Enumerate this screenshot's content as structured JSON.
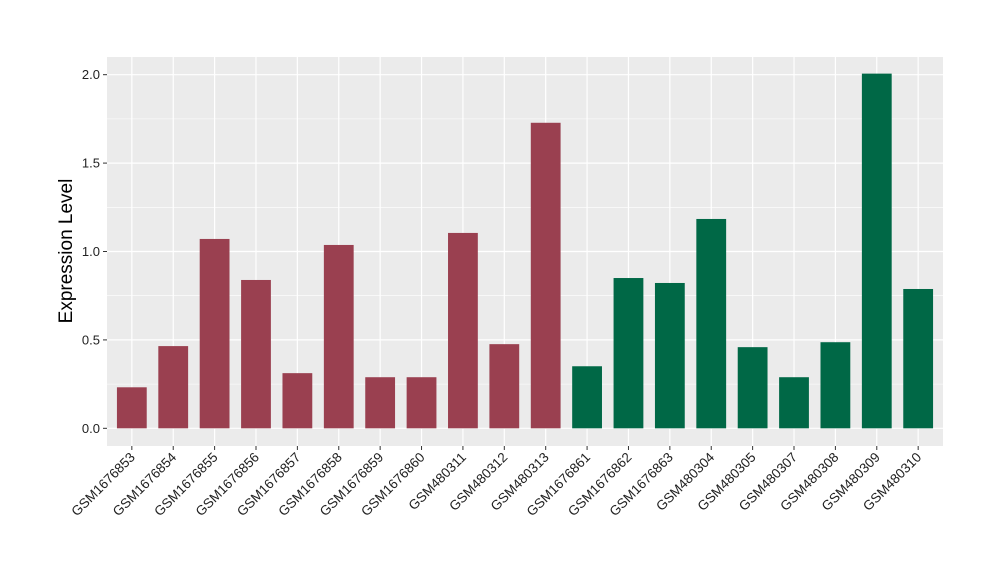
{
  "chart_data": {
    "type": "bar",
    "title": "",
    "xlabel": "",
    "ylabel": "Expression Level",
    "ylim": [
      -0.1,
      2.1
    ],
    "yticks": [
      "0.0",
      "0.5",
      "1.0",
      "1.5",
      "2.0"
    ],
    "grid": true,
    "categories": [
      "GSM1676853",
      "GSM1676854",
      "GSM1676855",
      "GSM1676856",
      "GSM1676857",
      "GSM1676858",
      "GSM1676859",
      "GSM1676860",
      "GSM480311",
      "GSM480312",
      "GSM480313",
      "GSM1676861",
      "GSM1676862",
      "GSM1676863",
      "GSM480304",
      "GSM480305",
      "GSM480307",
      "GSM480308",
      "GSM480309",
      "GSM480310"
    ],
    "values": [
      0.232,
      0.465,
      1.071,
      0.839,
      0.312,
      1.037,
      0.289,
      0.289,
      1.105,
      0.476,
      1.728,
      0.351,
      0.85,
      0.822,
      1.184,
      0.459,
      0.289,
      0.487,
      2.006,
      0.788
    ],
    "groups": [
      "A",
      "A",
      "A",
      "A",
      "A",
      "A",
      "A",
      "A",
      "A",
      "A",
      "A",
      "B",
      "B",
      "B",
      "B",
      "B",
      "B",
      "B",
      "B",
      "B"
    ],
    "group_colors": {
      "A": "#9A4050",
      "B": "#006846"
    }
  }
}
